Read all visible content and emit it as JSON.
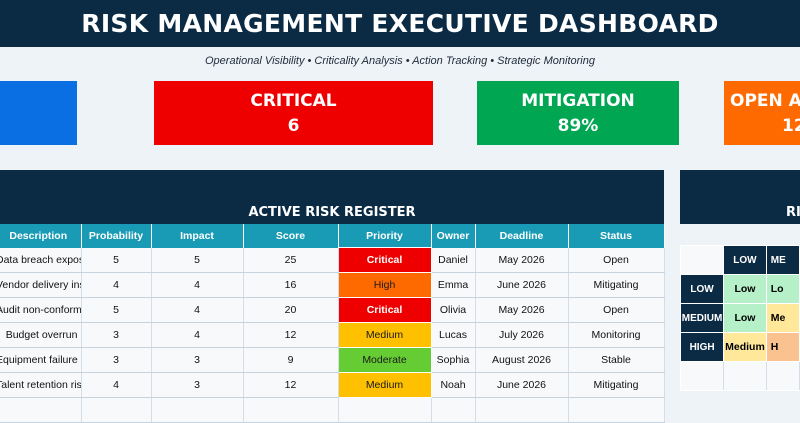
{
  "header": {
    "title": "RISK MANAGEMENT EXECUTIVE DASHBOARD",
    "subtitle": "Operational Visibility • Criticality Analysis • Action Tracking • Strategic Monitoring"
  },
  "kpis": [
    {
      "label": "",
      "value": "",
      "color": "#0a6fe2"
    },
    {
      "label": "CRITICAL",
      "value": "6",
      "color": "#ee0000"
    },
    {
      "label": "MITIGATION",
      "value": "89%",
      "color": "#00a651"
    },
    {
      "label": "OPEN AC",
      "value": "12",
      "color": "#ff6a00"
    }
  ],
  "register": {
    "title": "ACTIVE RISK REGISTER",
    "columns": [
      "Description",
      "Probability",
      "Impact",
      "Score",
      "Priority",
      "Owner",
      "Deadline",
      "Status"
    ],
    "rows": [
      {
        "description": "Data breach exposure",
        "probability": "5",
        "impact": "5",
        "score": "25",
        "priority": "Critical",
        "priority_color": "#ee0000",
        "priority_text_color": "#ffffff",
        "owner": "Daniel",
        "deadline": "May 2026",
        "status": "Open"
      },
      {
        "description": "Vendor delivery instability",
        "probability": "4",
        "impact": "4",
        "score": "16",
        "priority": "High",
        "priority_color": "#ff6a00",
        "priority_text_color": "#1a1a1a",
        "owner": "Emma",
        "deadline": "June 2026",
        "status": "Mitigating"
      },
      {
        "description": "Audit non-conformity",
        "probability": "5",
        "impact": "4",
        "score": "20",
        "priority": "Critical",
        "priority_color": "#ee0000",
        "priority_text_color": "#ffffff",
        "owner": "Olivia",
        "deadline": "May 2026",
        "status": "Open"
      },
      {
        "description": "Budget overrun",
        "probability": "3",
        "impact": "4",
        "score": "12",
        "priority": "Medium",
        "priority_color": "#ffc000",
        "priority_text_color": "#1a1a1a",
        "owner": "Lucas",
        "deadline": "July 2026",
        "status": "Monitoring"
      },
      {
        "description": "Equipment failure",
        "probability": "3",
        "impact": "3",
        "score": "9",
        "priority": "Moderate",
        "priority_color": "#66cc33",
        "priority_text_color": "#1a1a1a",
        "owner": "Sophia",
        "deadline": "August 2026",
        "status": "Stable"
      },
      {
        "description": "Talent retention risk",
        "probability": "4",
        "impact": "3",
        "score": "12",
        "priority": "Medium",
        "priority_color": "#ffc000",
        "priority_text_color": "#1a1a1a",
        "owner": "Noah",
        "deadline": "June 2026",
        "status": "Mitigating"
      }
    ]
  },
  "matrix": {
    "title": "RI",
    "col_headers": [
      "LOW",
      "ME"
    ],
    "rows": [
      {
        "label": "LOW",
        "cells": [
          {
            "text": "Low",
            "color": "#b6f0c9"
          },
          {
            "text": "Lo",
            "color": "#b6f0c9"
          }
        ]
      },
      {
        "label": "MEDIUM",
        "cells": [
          {
            "text": "Low",
            "color": "#b6f0c9"
          },
          {
            "text": "Me",
            "color": "#ffe89a"
          }
        ]
      },
      {
        "label": "HIGH",
        "cells": [
          {
            "text": "Medium",
            "color": "#ffe89a"
          },
          {
            "text": "H",
            "color": "#f9c28f"
          }
        ]
      }
    ]
  }
}
